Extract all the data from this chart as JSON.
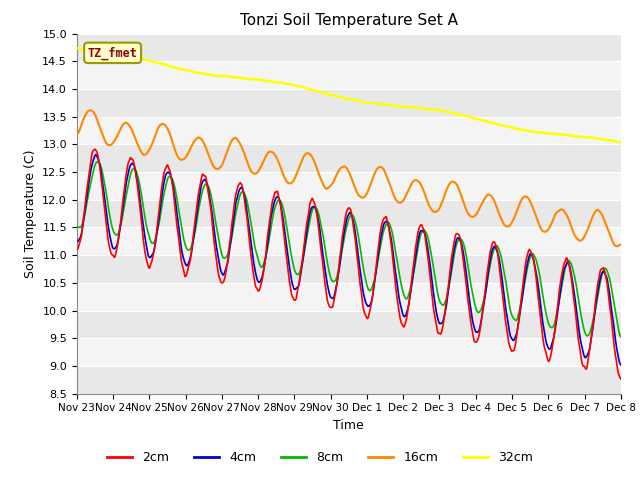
{
  "title": "Tonzi Soil Temperature Set A",
  "xlabel": "Time",
  "ylabel": "Soil Temperature (C)",
  "ylim": [
    8.5,
    15.0
  ],
  "yticks": [
    8.5,
    9.0,
    9.5,
    10.0,
    10.5,
    11.0,
    11.5,
    12.0,
    12.5,
    13.0,
    13.5,
    14.0,
    14.5,
    15.0
  ],
  "bg_color": "#ffffff",
  "plot_bg": "#ffffff",
  "grid_color": "#e0e0e0",
  "line_colors": {
    "2cm": "#ff0000",
    "4cm": "#0000cc",
    "8cm": "#00bb00",
    "16cm": "#ff8800",
    "32cm": "#ffff00"
  },
  "line_widths": {
    "2cm": 1.2,
    "4cm": 1.2,
    "8cm": 1.2,
    "16cm": 1.5,
    "32cm": 1.8
  },
  "legend_labels": [
    "2cm",
    "4cm",
    "8cm",
    "16cm",
    "32cm"
  ],
  "watermark_text": "TZ_fmet",
  "watermark_color": "#990000",
  "watermark_bg": "#ffffcc",
  "watermark_border": "#999900",
  "xtick_labels": [
    "Nov 23",
    "Nov 24",
    "Nov 25",
    "Nov 26",
    "Nov 27",
    "Nov 28",
    "Nov 29",
    "Nov 30",
    "Dec 1",
    "Dec 2",
    "Dec 3",
    "Dec 4",
    "Dec 5",
    "Dec 6",
    "Dec 7",
    "Dec 8"
  ],
  "n_points": 720,
  "n_days": 15
}
